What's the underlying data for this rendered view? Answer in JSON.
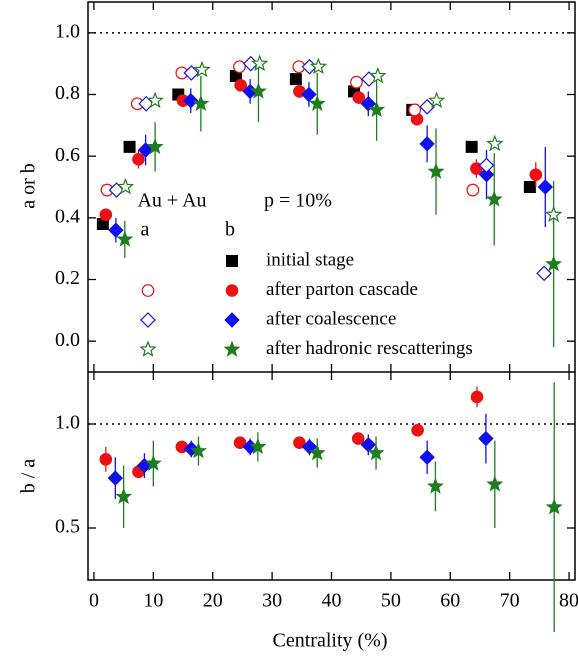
{
  "chart_data": [
    {
      "type": "scatter",
      "y_label": "a or b",
      "xlim": [
        -1,
        81
      ],
      "xticks": [
        0,
        10,
        20,
        30,
        40,
        50,
        60,
        70,
        80
      ],
      "ylim": [
        -0.1,
        1.1
      ],
      "yticks": [
        {
          "value": 0,
          "label": "0.0"
        },
        0.2,
        0.4,
        0.6,
        0.8,
        {
          "value": 1,
          "label": "1.0"
        }
      ],
      "hline": 1.0,
      "annotations": [
        "Au + Au",
        "p = 10%"
      ],
      "legend_headers": [
        "a",
        "b"
      ],
      "series": [
        {
          "name": "initial stage",
          "color": "#000000",
          "marker": "square",
          "filled": true,
          "x": [
            1.5,
            6,
            14.2,
            23.9,
            34,
            43.8,
            53.6,
            63.6,
            73.4
          ],
          "values": [
            0.38,
            0.63,
            0.8,
            0.86,
            0.85,
            0.81,
            0.75,
            0.63,
            0.5
          ]
        },
        {
          "name": "after parton cascade",
          "color": "#ee1111",
          "marker": "circle",
          "filled": true,
          "x": [
            2,
            7.5,
            15,
            24.7,
            34.6,
            44.6,
            54.4,
            64.4,
            74.4
          ],
          "values": [
            0.41,
            0.59,
            0.78,
            0.83,
            0.81,
            0.79,
            0.72,
            0.56,
            0.54
          ],
          "errors": [
            0.02,
            0.03,
            0.02,
            0.02,
            0.02,
            0.02,
            0.02,
            0.03,
            0.04
          ]
        },
        {
          "name": "after coalescence",
          "color": "#1010ee",
          "marker": "diamond",
          "filled": true,
          "x": [
            3.7,
            8.7,
            16.3,
            26.3,
            36.2,
            46.2,
            56.1,
            66.1,
            76
          ],
          "values": [
            0.36,
            0.62,
            0.78,
            0.81,
            0.8,
            0.77,
            0.64,
            0.54,
            0.5
          ],
          "errors": [
            0.04,
            0.05,
            0.04,
            0.04,
            0.04,
            0.04,
            0.06,
            0.08,
            0.13
          ]
        },
        {
          "name": "after hadronic rescatterings",
          "color": "#1e7d1e",
          "marker": "star",
          "filled": true,
          "x": [
            5.2,
            10.3,
            18,
            27.7,
            37.6,
            47.6,
            57.6,
            67.4,
            77.4
          ],
          "values": [
            0.33,
            0.63,
            0.77,
            0.81,
            0.77,
            0.75,
            0.55,
            0.46,
            0.25
          ],
          "errors": [
            0.06,
            0.08,
            0.09,
            0.1,
            0.1,
            0.1,
            0.14,
            0.15,
            0.27
          ]
        },
        {
          "color": "#ee1111",
          "marker": "circle",
          "filled": false,
          "x": [
            2.2,
            7.3,
            14.8,
            24.5,
            34.5,
            44.2,
            54,
            63.8,
            null
          ],
          "values": [
            0.49,
            0.77,
            0.87,
            0.89,
            0.89,
            0.84,
            0.75,
            0.49,
            null
          ]
        },
        {
          "color": "#1010ee",
          "marker": "diamond",
          "filled": false,
          "x": [
            3.8,
            8.8,
            16.4,
            26.4,
            36.3,
            46.3,
            56.1,
            66.1,
            75.8
          ],
          "values": [
            0.49,
            0.77,
            0.87,
            0.9,
            0.89,
            0.85,
            0.76,
            0.57,
            0.22
          ]
        },
        {
          "color": "#1e7d1e",
          "marker": "star",
          "filled": false,
          "x": [
            5.3,
            10.3,
            18.2,
            27.9,
            37.8,
            47.8,
            57.7,
            67.5,
            77.4
          ],
          "values": [
            0.5,
            0.78,
            0.88,
            0.9,
            0.89,
            0.86,
            0.78,
            0.64,
            0.41
          ]
        }
      ]
    },
    {
      "type": "scatter",
      "y_label": "b / a",
      "x_label": "Centrality (%)",
      "xlim": [
        -1,
        81
      ],
      "xticks": [
        0,
        10,
        20,
        30,
        40,
        50,
        60,
        70,
        80
      ],
      "ylim": [
        0.25,
        1.25
      ],
      "yticks": [
        0.5,
        {
          "value": 1,
          "label": "1.0"
        }
      ],
      "hline": 1.0,
      "series": [
        {
          "color": "#ee1111",
          "marker": "circle",
          "filled": true,
          "x": [
            2,
            7.5,
            14.8,
            24.6,
            34.6,
            44.5,
            54.5,
            64.5,
            null
          ],
          "values": [
            0.83,
            0.77,
            0.89,
            0.91,
            0.91,
            0.93,
            0.97,
            1.13,
            null
          ],
          "errors": [
            0.06,
            0.03,
            0.02,
            0.02,
            0.02,
            0.02,
            0.02,
            0.05,
            null
          ]
        },
        {
          "color": "#1010ee",
          "marker": "diamond",
          "filled": true,
          "x": [
            3.6,
            8.5,
            16.4,
            26.3,
            36.3,
            46.2,
            56.1,
            66,
            null
          ],
          "values": [
            0.74,
            0.8,
            0.88,
            0.89,
            0.89,
            0.9,
            0.84,
            0.93,
            null
          ],
          "errors": [
            0.1,
            0.06,
            0.04,
            0.04,
            0.04,
            0.05,
            0.08,
            0.12,
            null
          ]
        },
        {
          "color": "#1e7d1e",
          "marker": "star",
          "filled": true,
          "x": [
            5,
            10,
            17.6,
            27.6,
            37.6,
            47.5,
            57.5,
            67.5,
            77.5
          ],
          "values": [
            0.65,
            0.81,
            0.87,
            0.89,
            0.86,
            0.86,
            0.7,
            0.71,
            0.6
          ],
          "errors": [
            0.15,
            0.11,
            0.07,
            0.07,
            0.07,
            0.08,
            0.12,
            0.21,
            0.6
          ]
        }
      ]
    }
  ]
}
